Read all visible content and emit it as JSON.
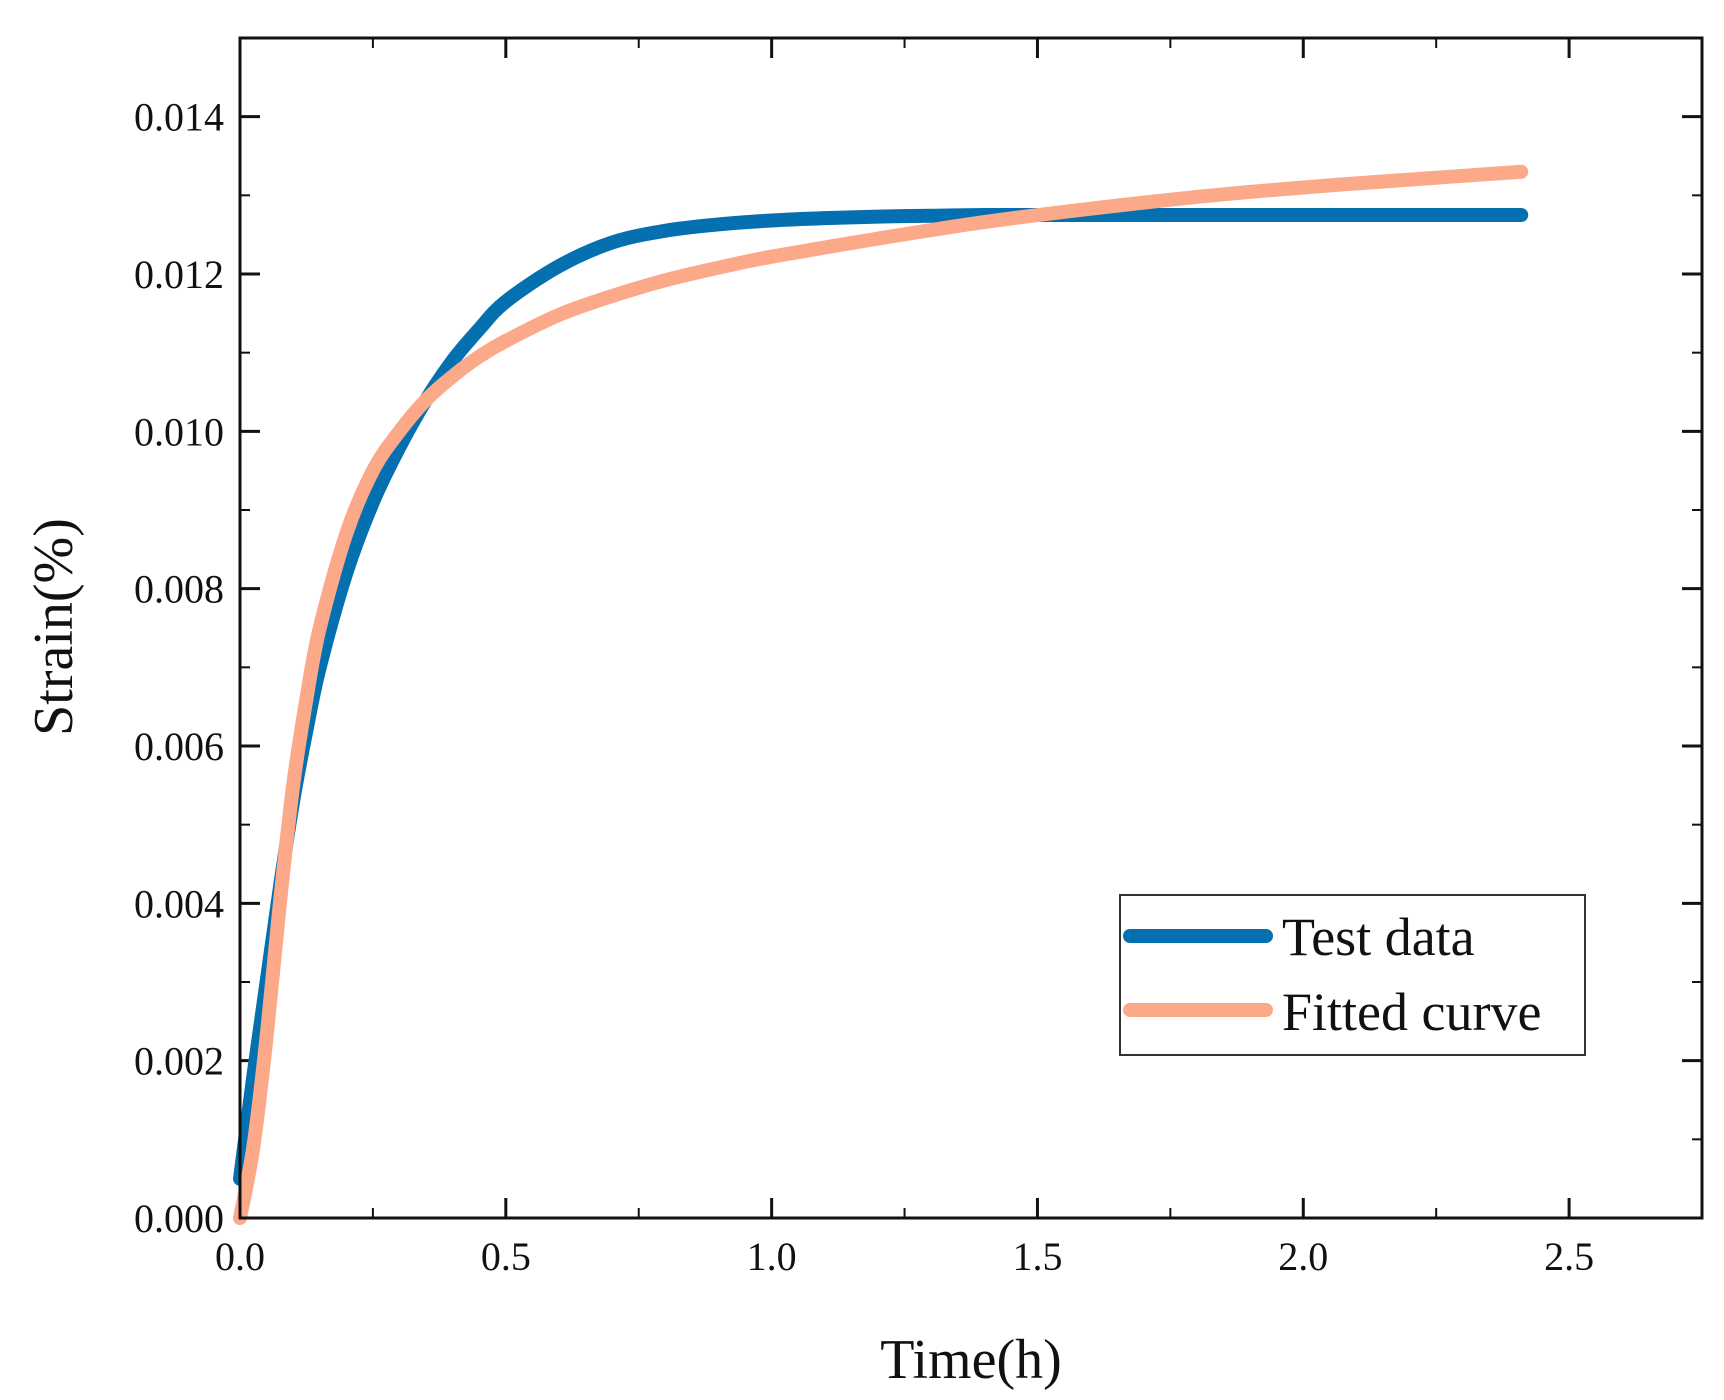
{
  "chart_data": {
    "type": "line",
    "title": "",
    "xlabel": "Time(h)",
    "ylabel": "Strain(%)",
    "xlim": [
      0,
      2.75
    ],
    "ylim": [
      0,
      0.015
    ],
    "xticks": [
      0.0,
      0.5,
      1.0,
      1.5,
      2.0,
      2.5
    ],
    "xtick_labels": [
      "0.0",
      "0.5",
      "1.0",
      "1.5",
      "2.0",
      "2.5"
    ],
    "x_minor_step": 0.25,
    "yticks": [
      0.0,
      0.002,
      0.004,
      0.006,
      0.008,
      0.01,
      0.012,
      0.014
    ],
    "ytick_labels": [
      "0.000",
      "0.002",
      "0.004",
      "0.006",
      "0.008",
      "0.010",
      "0.012",
      "0.014"
    ],
    "y_minor_step": 0.001,
    "grid": false,
    "legend_position": "bottom-right",
    "series": [
      {
        "name": "Test data",
        "color": "#0570B0",
        "x": [
          0,
          0.025,
          0.05,
          0.075,
          0.1,
          0.125,
          0.15,
          0.2,
          0.25,
          0.3,
          0.35,
          0.4,
          0.45,
          0.5,
          0.6,
          0.7,
          0.8,
          0.9,
          1.0,
          1.1,
          1.2,
          1.3,
          1.4,
          1.6,
          1.8,
          2.0,
          2.2,
          2.41
        ],
        "y": [
          0.0005,
          0.0018,
          0.003,
          0.0042,
          0.0053,
          0.0062,
          0.007,
          0.0082,
          0.0091,
          0.0098,
          0.0104,
          0.0109,
          0.0113,
          0.01165,
          0.0121,
          0.0124,
          0.01255,
          0.01263,
          0.01268,
          0.01271,
          0.01273,
          0.01274,
          0.01275,
          0.01275,
          0.01275,
          0.01275,
          0.01275,
          0.01275
        ]
      },
      {
        "name": "Fitted curve",
        "color": "#FCA98A",
        "x": [
          0,
          0.025,
          0.05,
          0.075,
          0.1,
          0.125,
          0.15,
          0.2,
          0.25,
          0.3,
          0.35,
          0.4,
          0.45,
          0.5,
          0.6,
          0.7,
          0.8,
          0.9,
          1.0,
          1.2,
          1.4,
          1.6,
          1.8,
          2.0,
          2.2,
          2.41
        ],
        "y": [
          0.0,
          0.0009,
          0.0023,
          0.004,
          0.0055,
          0.0066,
          0.0075,
          0.0087,
          0.0095,
          0.01,
          0.0104,
          0.0107,
          0.01095,
          0.01115,
          0.01148,
          0.01172,
          0.01192,
          0.01208,
          0.01222,
          0.01245,
          0.01266,
          0.01283,
          0.01298,
          0.0131,
          0.0132,
          0.0133
        ]
      }
    ]
  }
}
